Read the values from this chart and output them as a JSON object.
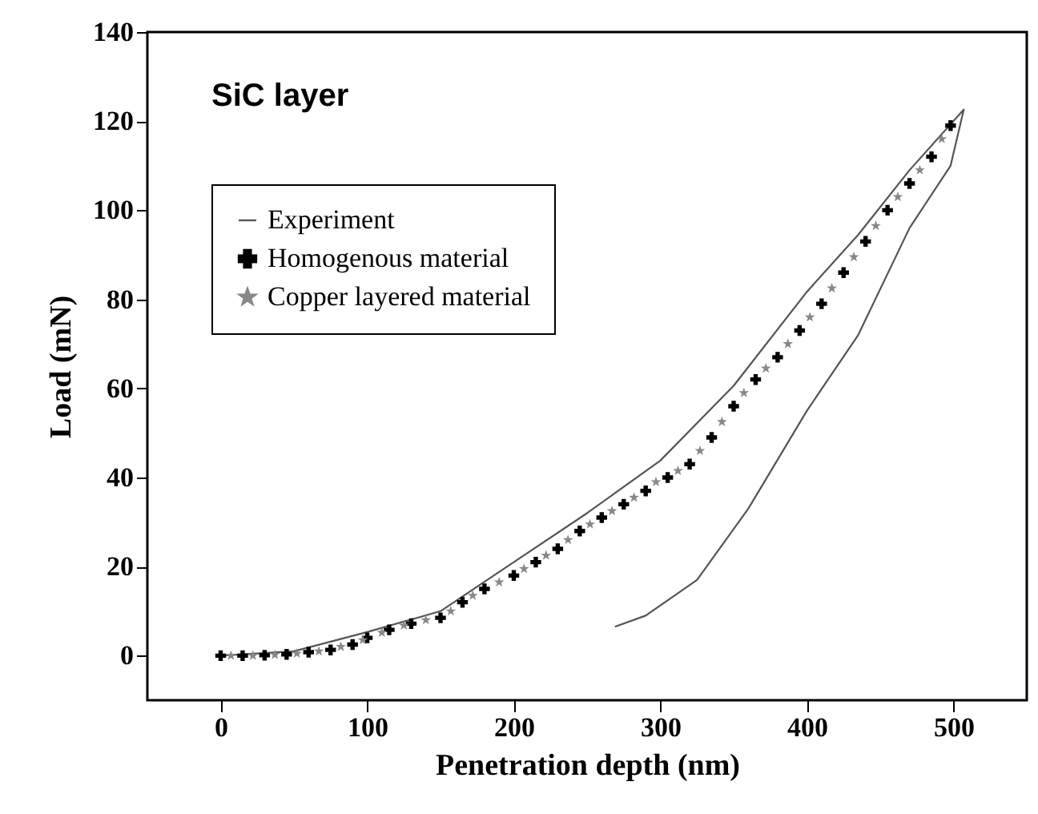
{
  "chart_data": {
    "type": "line",
    "xlabel": "Penetration depth (nm)",
    "ylabel": "Load (mN)",
    "annotations": [
      "SiC layer"
    ],
    "xlim": [
      -50,
      550
    ],
    "xticks": [
      0,
      100,
      200,
      300,
      400,
      500
    ],
    "ylim": [
      -10,
      140
    ],
    "yticks": [
      0,
      20,
      40,
      60,
      80,
      100,
      120,
      140
    ],
    "grid": false,
    "legend": "top left",
    "series": [
      {
        "name": "Experiment",
        "marker": "none",
        "color": "#555555",
        "x": [
          0,
          50,
          100,
          150,
          200,
          250,
          300,
          350,
          400,
          435,
          470,
          507,
          498,
          470,
          435,
          400,
          360,
          325,
          290,
          269
        ],
        "values": [
          0,
          1,
          5.3,
          10,
          21,
          32,
          43.8,
          60.6,
          81.7,
          94.5,
          109,
          122.6,
          110,
          96,
          72,
          55,
          33,
          17,
          9,
          6.5
        ]
      },
      {
        "name": "Homogenous material",
        "type": "scatter",
        "marker": "cross",
        "color": "#000000",
        "x": [
          0,
          15,
          30,
          45,
          60,
          75,
          90,
          100,
          115,
          130,
          150,
          165,
          180,
          200,
          215,
          230,
          245,
          260,
          275,
          290,
          305,
          320,
          335,
          350,
          365,
          380,
          395,
          410,
          425,
          440,
          455,
          470,
          485,
          498
        ],
        "values": [
          0,
          0,
          0.1,
          0.3,
          0.8,
          1.3,
          2.5,
          4,
          5.8,
          7.2,
          8.5,
          12,
          15,
          18,
          21,
          24,
          28,
          31,
          34,
          37,
          40,
          43,
          49,
          56,
          62,
          67,
          73,
          79,
          86,
          93,
          100,
          106,
          112,
          119
        ]
      },
      {
        "name": "Copper layered material",
        "type": "scatter",
        "marker": "star",
        "color": "#888888",
        "x": [
          7,
          22,
          37,
          52,
          67,
          82,
          97,
          110,
          125,
          140,
          157,
          172,
          190,
          207,
          222,
          237,
          252,
          267,
          282,
          297,
          312,
          327,
          342,
          357,
          372,
          387,
          402,
          417,
          432,
          447,
          462,
          477,
          492
        ],
        "values": [
          0,
          0,
          0.2,
          0.5,
          1,
          2,
          3.5,
          5.2,
          6.8,
          8,
          10,
          13.5,
          16.5,
          19.5,
          22.5,
          26,
          29.5,
          32.5,
          35.5,
          39,
          41.5,
          46,
          52.5,
          59,
          64.5,
          70,
          76,
          82.5,
          89.5,
          96.5,
          103,
          109,
          116
        ]
      }
    ]
  }
}
